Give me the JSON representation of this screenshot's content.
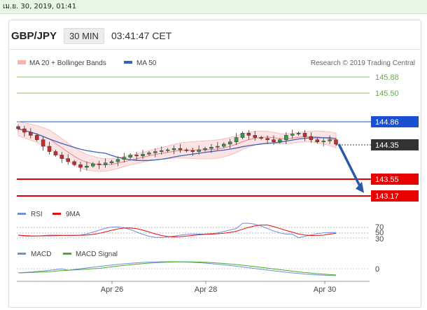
{
  "timestamp_bar": "เม.ย. 30, 2019, 01:41",
  "header": {
    "pair": "GBP/JPY",
    "timeframe": "30 MIN",
    "time": "03:41:47 CET"
  },
  "legend": {
    "ma20": "MA 20 + Bollinger Bands",
    "ma50": "MA 50",
    "credit": "Research © 2019 Trading Central"
  },
  "colors": {
    "bollinger": "#f7b3b3",
    "ma50": "#3b63b3",
    "resistance": "#1a4fd0",
    "support": "#e60000",
    "target_lines": "#8cc16a",
    "arrow": "#2a5aa8",
    "price_tag": "#333333",
    "rsi": "#6f8fd8",
    "rsi_ma": "#e01010",
    "macd": "#6f8fd8",
    "macd_signal": "#4caa2a"
  },
  "chart_data": [
    {
      "type": "candlestick",
      "instrument": "GBP/JPY",
      "x_labels": [
        "Apr 26",
        "Apr 28",
        "Apr 30"
      ],
      "key_levels": [
        {
          "value": 145.88,
          "label": "145.88",
          "kind": "target"
        },
        {
          "value": 145.5,
          "label": "145.50",
          "kind": "target"
        },
        {
          "value": 144.86,
          "label": "144.86",
          "kind": "resistance"
        },
        {
          "value": 144.35,
          "label": "144.35",
          "kind": "last_price"
        },
        {
          "value": 143.55,
          "label": "143.55",
          "kind": "support"
        },
        {
          "value": 143.17,
          "label": "143.17",
          "kind": "support"
        }
      ],
      "close_series": [
        144.7,
        144.62,
        144.55,
        144.45,
        144.3,
        144.18,
        144.1,
        144.02,
        143.95,
        143.88,
        143.82,
        143.85,
        143.9,
        143.88,
        143.92,
        143.95,
        144.0,
        144.05,
        144.1,
        144.08,
        144.12,
        144.15,
        144.18,
        144.2,
        144.22,
        144.25,
        144.22,
        144.2,
        144.18,
        144.22,
        144.25,
        144.28,
        144.3,
        144.35,
        144.4,
        144.5,
        144.6,
        144.55,
        144.5,
        144.48,
        144.45,
        144.4,
        144.45,
        144.55,
        144.58,
        144.6,
        144.52,
        144.45,
        144.4,
        144.42,
        144.45,
        144.35
      ],
      "projection": {
        "from": 144.35,
        "to": 143.17
      }
    },
    {
      "type": "line",
      "name": "RSI",
      "series": [
        {
          "name": "RSI"
        },
        {
          "name": "9MA"
        }
      ],
      "levels": [
        "70",
        "50",
        "30"
      ]
    },
    {
      "type": "line",
      "name": "MACD",
      "series": [
        {
          "name": "MACD"
        },
        {
          "name": "MACD Signal"
        }
      ],
      "levels": [
        "0"
      ]
    }
  ]
}
